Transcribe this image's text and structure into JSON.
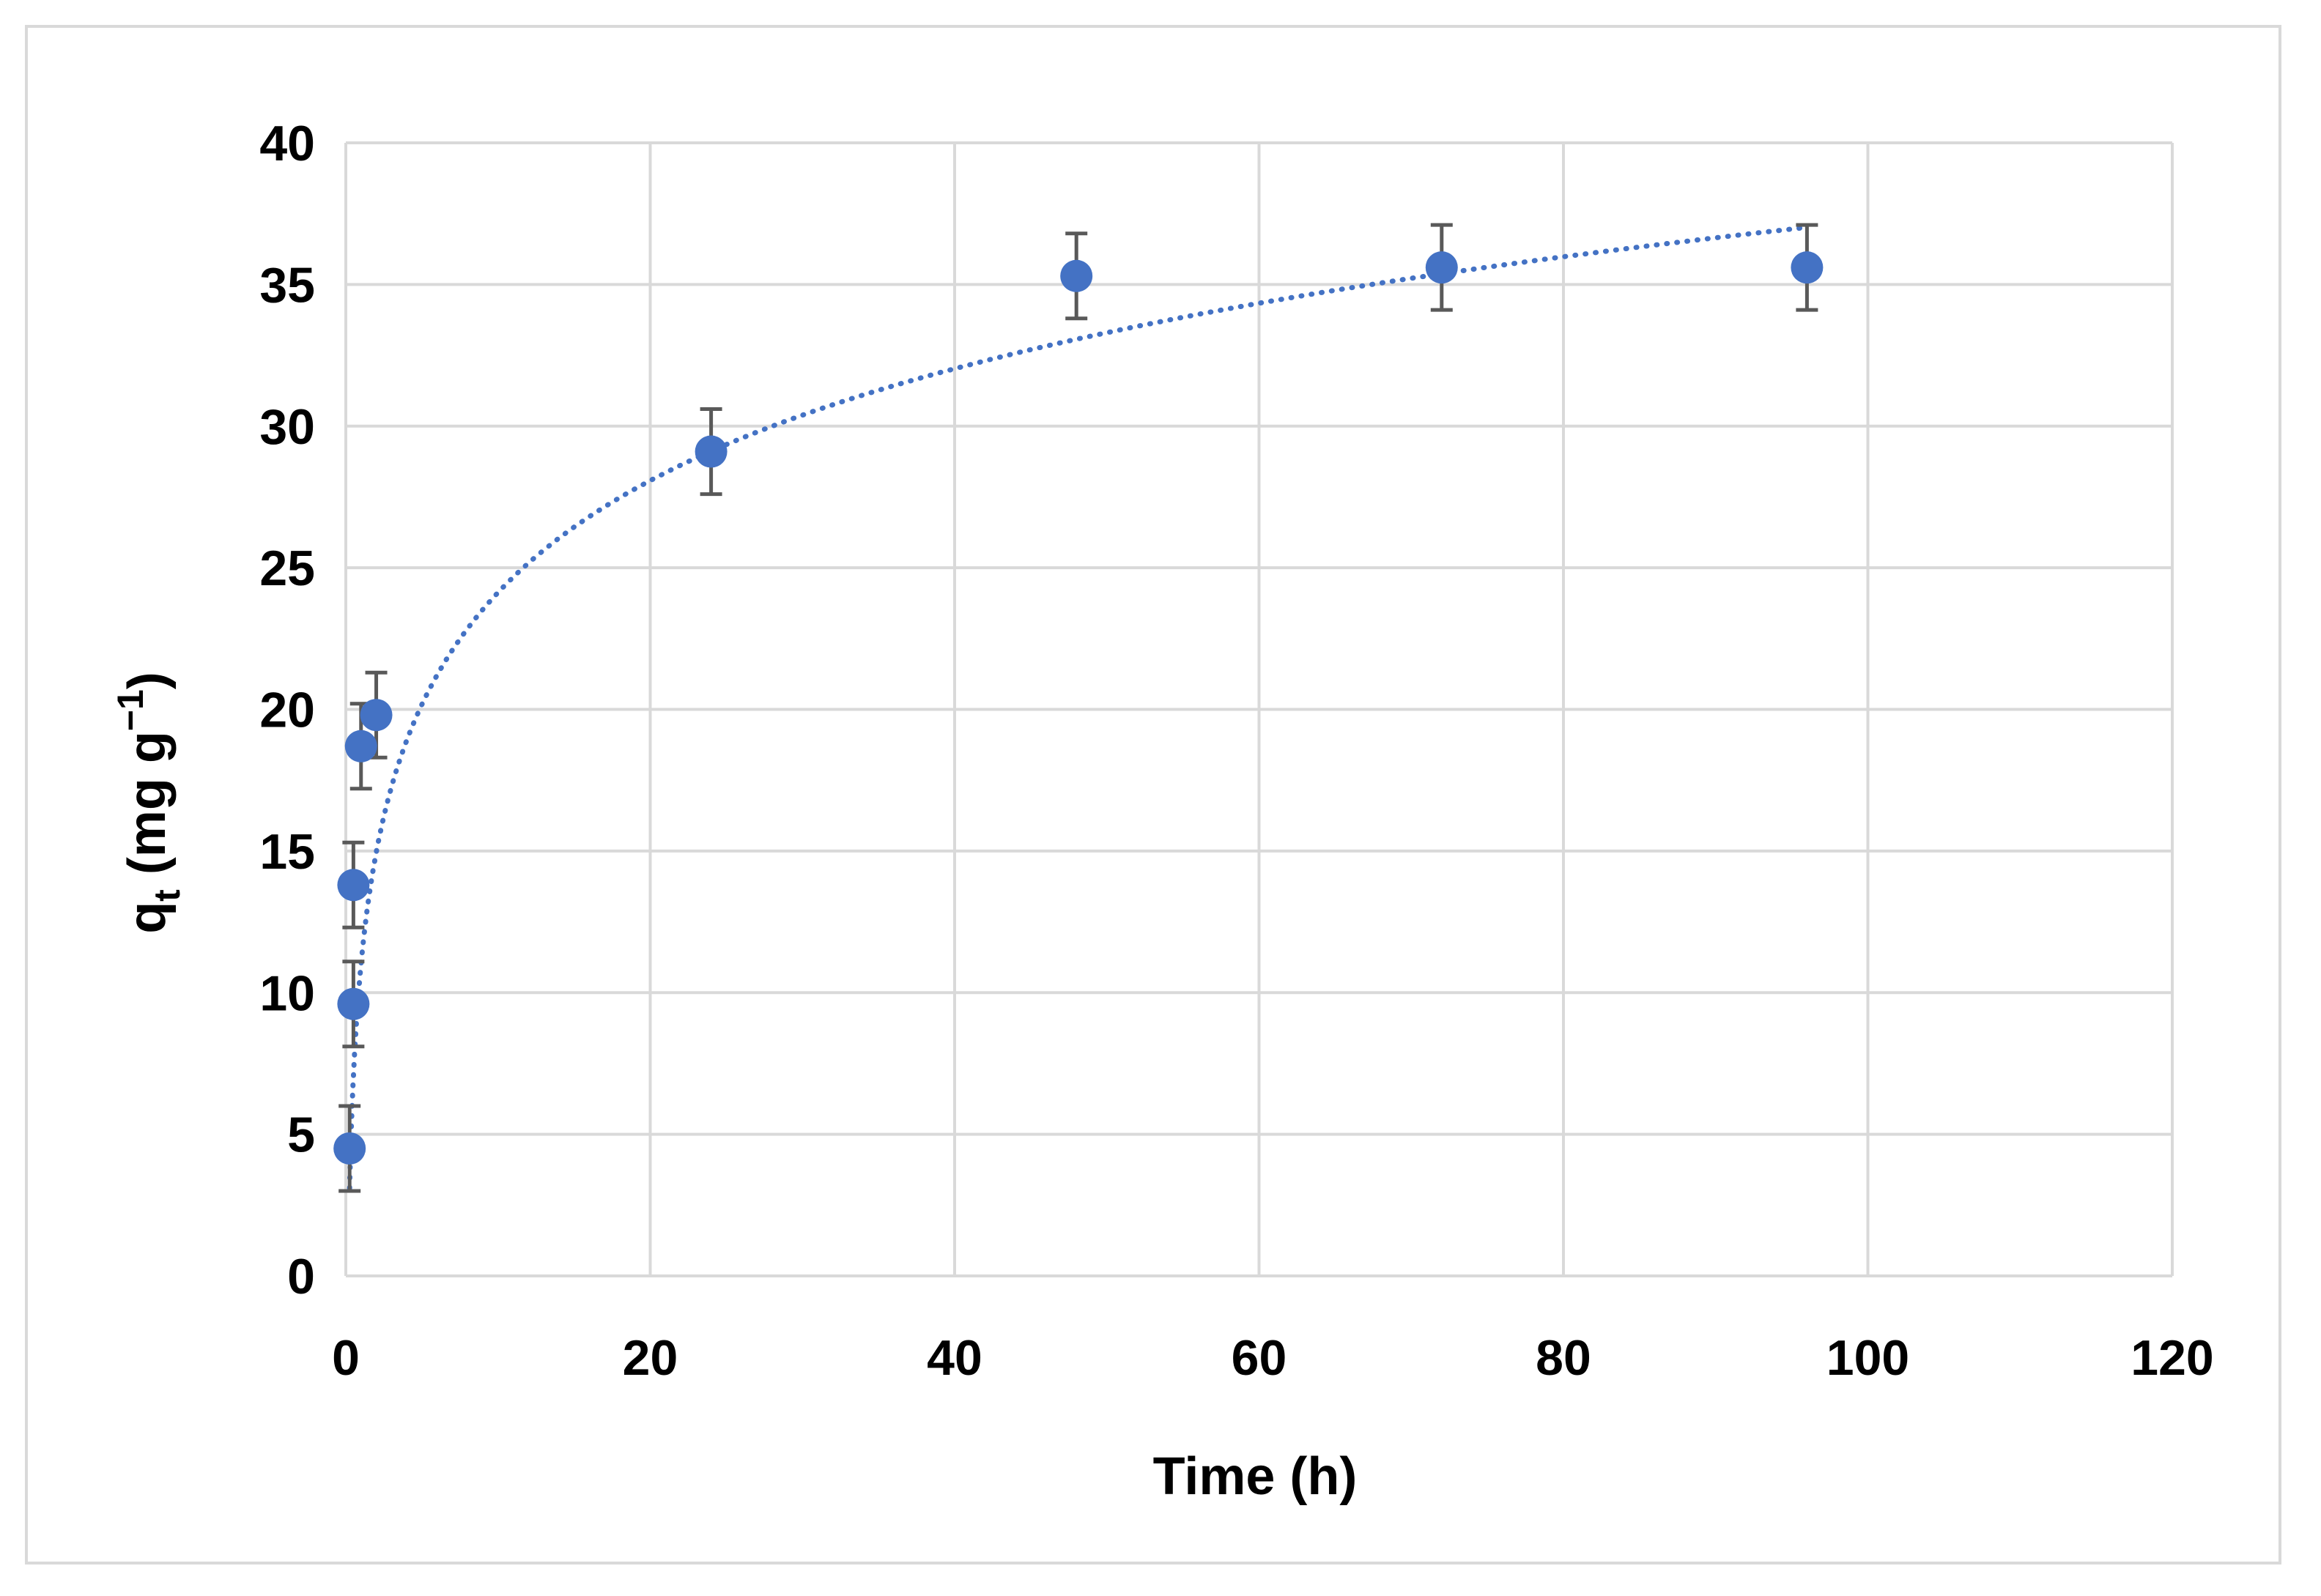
{
  "chart_data": {
    "type": "scatter",
    "xlabel": "Time (h)",
    "ylabel": {
      "base": "q",
      "subscript": "t",
      "unit_open": " (mg g",
      "superscript": "−1",
      "unit_close": ")"
    },
    "xlim": [
      0,
      120
    ],
    "ylim": [
      0,
      40
    ],
    "x_ticks": [
      "0",
      "20",
      "40",
      "60",
      "80",
      "100",
      "120"
    ],
    "y_ticks": [
      "0",
      "5",
      "10",
      "15",
      "20",
      "25",
      "30",
      "35",
      "40"
    ],
    "grid": true,
    "legend": "none",
    "marker_color": "#4472c4",
    "errorbar_color": "#595959",
    "series": [
      {
        "x": [
          0.25,
          0.5,
          0.5,
          1,
          2,
          24,
          48,
          72,
          96
        ],
        "y": [
          4.5,
          9.6,
          13.8,
          18.7,
          19.8,
          29.1,
          35.3,
          35.6,
          35.6
        ],
        "error": [
          1.5,
          1.5,
          1.5,
          1.5,
          1.5,
          1.5,
          1.5,
          1.5,
          1.5
        ]
      }
    ],
    "trendline": {
      "type": "logarithmic",
      "style": "dotted",
      "color": "#4472c4",
      "x_range": [
        0.25,
        96
      ],
      "intercept": 11.0,
      "slope": 5.7
    }
  }
}
